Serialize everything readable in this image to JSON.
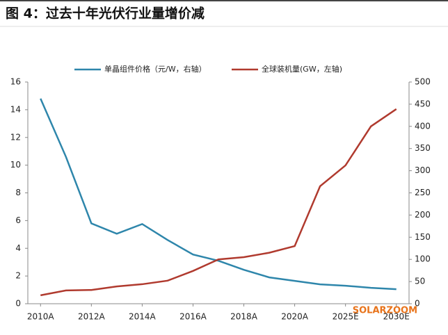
{
  "chart_data": {
    "type": "line",
    "title": "图 4：过去十年光伏行业量增价减",
    "categories": [
      "2010A",
      null,
      "2012A",
      null,
      "2014A",
      null,
      "2016A",
      null,
      "2018A",
      null,
      "2020A",
      null,
      "2025E",
      null,
      "2030E"
    ],
    "series": [
      {
        "name": "单晶组件价格（元/W，右轴）",
        "color": "#2e86ab",
        "values": [
          14.8,
          10.6,
          5.8,
          5.05,
          5.75,
          4.6,
          3.55,
          3.1,
          2.45,
          1.9,
          1.65,
          1.4,
          1.3,
          1.15,
          1.05
        ]
      },
      {
        "name": "全球装机量(GW，左轴)",
        "color": "#b03a2e",
        "axis": "y2",
        "values": [
          19,
          30,
          31,
          39,
          44,
          52,
          74,
          100,
          105,
          115,
          130,
          265,
          312,
          400,
          439
        ]
      }
    ],
    "ylim": [
      0,
      16
    ],
    "yticks": [
      0,
      2,
      4,
      6,
      8,
      10,
      12,
      14,
      16
    ],
    "y2lim": [
      0,
      500
    ],
    "y2ticks": [
      0,
      50,
      100,
      150,
      200,
      250,
      300,
      350,
      400,
      450,
      500
    ],
    "watermark": "SOLARZOOM"
  }
}
